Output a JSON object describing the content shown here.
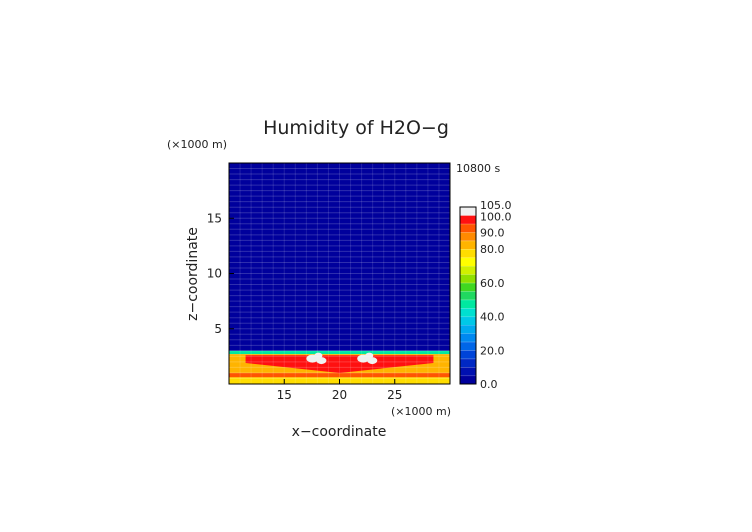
{
  "chart_data": {
    "type": "heatmap",
    "title": "Humidity of H2O−g",
    "xlabel": "x−coordinate",
    "ylabel": "z−coordinate",
    "x_unit": "(×1000 m)",
    "z_unit": "(×1000 m)",
    "time_label": "10800 s",
    "xlim": [
      10,
      30
    ],
    "ylim": [
      0,
      20
    ],
    "x_ticks": [
      "15",
      "20",
      "25"
    ],
    "x_tick_values": [
      15,
      20,
      25
    ],
    "z_ticks": [
      "5",
      "10",
      "15"
    ],
    "z_tick_values": [
      5,
      10,
      15
    ],
    "colorbar": {
      "range": [
        0,
        105
      ],
      "tick_labels": [
        "0.0",
        "20.0",
        "40.0",
        "60.0",
        "80.0",
        "90.0",
        "100.0",
        "105.0"
      ],
      "tick_values": [
        0,
        20,
        40,
        60,
        80,
        90,
        100,
        105
      ],
      "levels": [
        0,
        5,
        10,
        15,
        20,
        25,
        30,
        35,
        40,
        45,
        50,
        55,
        60,
        65,
        70,
        75,
        80,
        85,
        90,
        95,
        100,
        105
      ],
      "colors": [
        "#00009c",
        "#0010b0",
        "#0028c4",
        "#0044d8",
        "#0066e8",
        "#0088f0",
        "#00aaf0",
        "#00c8e8",
        "#00e0d0",
        "#00e8a0",
        "#20d860",
        "#40d820",
        "#90e000",
        "#d0f000",
        "#ffff00",
        "#ffdd00",
        "#ffb400",
        "#ff8a00",
        "#ff5500",
        "#ff1010",
        "#f0f0f0"
      ]
    },
    "layers": [
      {
        "z_range": [
          3.0,
          20.0
        ],
        "value": 2
      },
      {
        "z_range": [
          2.7,
          3.0
        ],
        "value": 45
      },
      {
        "z_range": [
          1.0,
          2.7
        ],
        "value": 82
      },
      {
        "z_range": [
          0.6,
          1.0
        ],
        "value": 90
      },
      {
        "z_range": [
          0.0,
          0.6
        ],
        "value": 75
      }
    ],
    "features": [
      {
        "name": "saturated band",
        "x_range": [
          11.5,
          28.5
        ],
        "z_top": 2.6,
        "z_bottom_edge": 1.9,
        "z_bottom_center": 1.0,
        "value": 98
      },
      {
        "name": "supersaturated cloud patches",
        "centers": [
          [
            18,
            2.3
          ],
          [
            22.6,
            2.3
          ]
        ],
        "value": 103
      }
    ]
  }
}
